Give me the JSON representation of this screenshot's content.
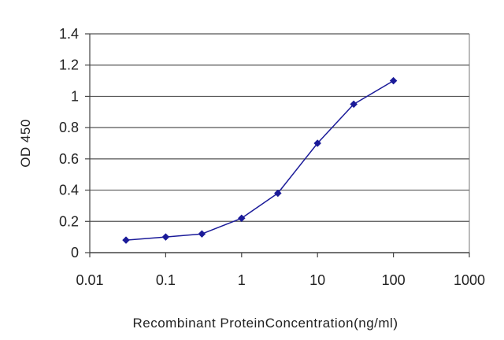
{
  "chart_data": {
    "type": "line",
    "title": "",
    "xlabel": "Recombinant ProteinConcentration(ng/ml)",
    "ylabel": "OD 450",
    "x_scale": "log",
    "xlim": [
      0.01,
      1000
    ],
    "ylim": [
      0,
      1.4
    ],
    "x_ticks": [
      "0.01",
      "0.1",
      "1",
      "10",
      "100",
      "1000"
    ],
    "y_ticks": [
      "0",
      "0.2",
      "0.4",
      "0.6",
      "0.8",
      "1",
      "1.2",
      "1.4"
    ],
    "grid": "horizontal",
    "legend": "none",
    "series": [
      {
        "x": [
          0.03,
          0.1,
          0.3,
          1,
          3,
          10,
          30,
          100
        ],
        "y": [
          0.08,
          0.1,
          0.12,
          0.22,
          0.38,
          0.7,
          0.95,
          1.1
        ],
        "color": "#1a1a99",
        "marker": "diamond"
      }
    ]
  }
}
